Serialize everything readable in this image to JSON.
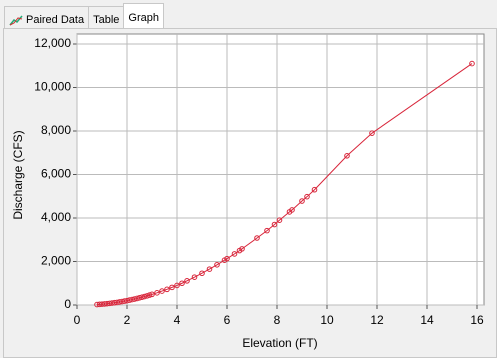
{
  "tabs": [
    "Paired Data",
    "Table",
    "Graph"
  ],
  "chart_data": {
    "type": "line",
    "xlabel": "Elevation (FT)",
    "ylabel": "Discharge (CFS)",
    "x": [
      0.8,
      0.9,
      1.0,
      1.1,
      1.2,
      1.3,
      1.4,
      1.5,
      1.6,
      1.7,
      1.8,
      1.9,
      2.0,
      2.1,
      2.2,
      2.3,
      2.4,
      2.5,
      2.6,
      2.7,
      2.8,
      2.9,
      3.0,
      3.2,
      3.4,
      3.6,
      3.8,
      4.0,
      4.2,
      4.4,
      4.7,
      5.0,
      5.3,
      5.6,
      5.9,
      6.0,
      6.3,
      6.5,
      6.6,
      7.2,
      7.6,
      7.9,
      8.1,
      8.5,
      8.6,
      9.0,
      9.2,
      9.5,
      10.8,
      11.8,
      15.8
    ],
    "values": [
      20,
      30,
      40,
      50,
      60,
      75,
      90,
      105,
      120,
      140,
      160,
      180,
      200,
      225,
      250,
      275,
      300,
      330,
      360,
      390,
      420,
      455,
      490,
      560,
      640,
      720,
      810,
      900,
      1000,
      1110,
      1280,
      1460,
      1650,
      1850,
      2060,
      2130,
      2350,
      2500,
      2580,
      3080,
      3420,
      3700,
      3900,
      4280,
      4370,
      4780,
      4980,
      5300,
      6860,
      7900,
      11100
    ],
    "color": "#d8253a",
    "xlim": [
      0,
      16
    ],
    "xticks": [
      0,
      2,
      4,
      6,
      8,
      10,
      12,
      14,
      16
    ],
    "ylim": [
      0,
      12000
    ],
    "yticks": [
      0,
      {
        "value": 2000,
        "label": "2,000"
      },
      {
        "value": 4000,
        "label": "4,000"
      },
      {
        "value": 6000,
        "label": "6,000"
      },
      {
        "value": 8000,
        "label": "8,000"
      },
      {
        "value": 10000,
        "label": "10,000"
      },
      {
        "value": 12000,
        "label": "12,000"
      }
    ],
    "grid": true
  }
}
